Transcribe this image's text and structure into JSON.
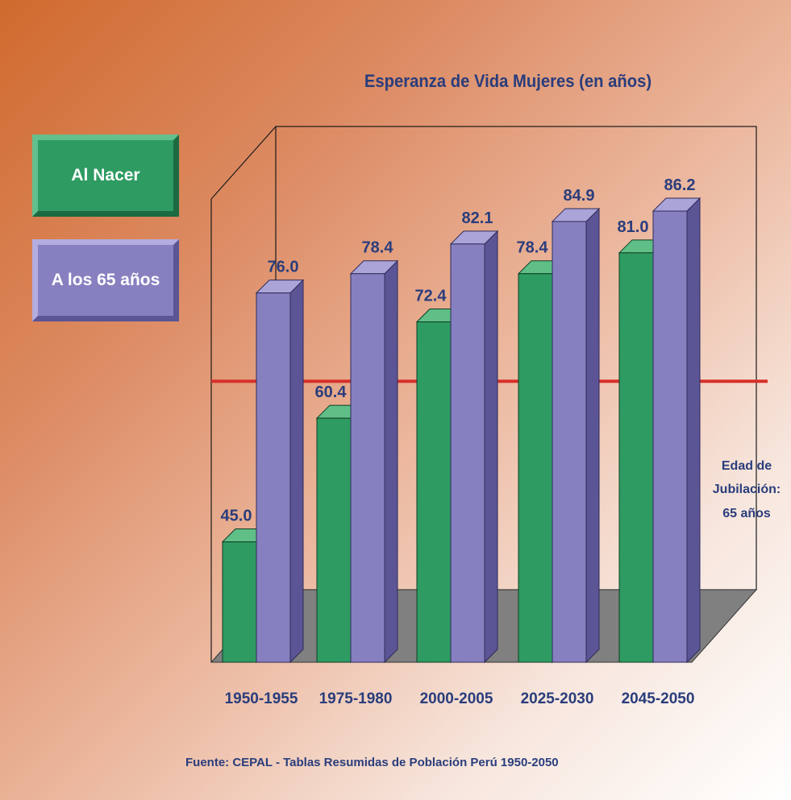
{
  "chart_data": {
    "type": "bar",
    "title": "Esperanza de Vida Mujeres (en años)",
    "categories": [
      "1950-1955",
      "1975-1980",
      "2000-2005",
      "2025-2030",
      "2045-2050"
    ],
    "series": [
      {
        "name": "Al Nacer",
        "values": [
          45.0,
          60.4,
          72.4,
          78.4,
          81.0
        ],
        "color": "#2e9b62"
      },
      {
        "name": "A los 65 años",
        "values": [
          76.0,
          78.4,
          82.1,
          84.9,
          86.2
        ],
        "color": "#8780c0"
      }
    ],
    "value_labels": [
      [
        "45.0",
        "60.4",
        "72.4",
        "78.4",
        "81.0"
      ],
      [
        "76.0",
        "78.4",
        "82.1",
        "84.9",
        "86.2"
      ]
    ],
    "reference_line": {
      "value": 65,
      "color": "#d7302a",
      "label_lines": [
        "Edad de",
        "Jubilación:",
        "65 años"
      ]
    },
    "ylim": [
      30,
      90
    ],
    "xlabel": "",
    "ylabel": "",
    "grid": false,
    "legend_placement": "left",
    "floor_color": "#808080",
    "label_color": "#2a3d7c"
  },
  "source": "Fuente: CEPAL - Tablas Resumidas de Población Perú 1950-2050"
}
